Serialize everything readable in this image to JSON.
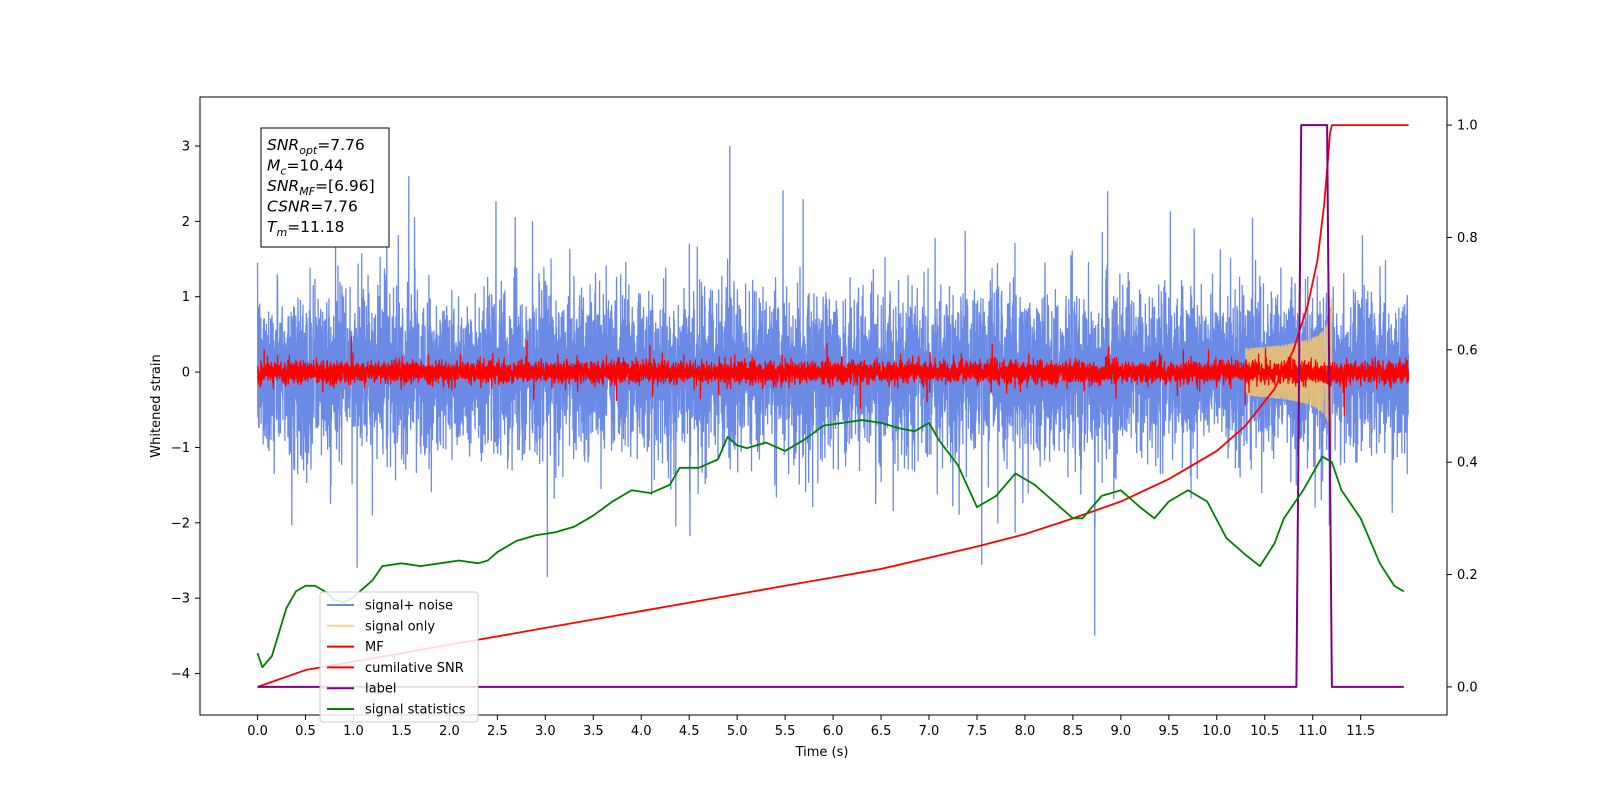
{
  "chart_data": {
    "type": "line",
    "title": "",
    "xlabel": "Time (s)",
    "ylabel": "Whitened strain",
    "xlim": [
      -0.6,
      12.4
    ],
    "ylim": [
      -4.55,
      3.65
    ],
    "y2lim": [
      -0.05,
      1.05
    ],
    "x_ticks": [
      "0.0",
      "0.5",
      "1.0",
      "1.5",
      "2.0",
      "2.5",
      "3.0",
      "3.5",
      "4.0",
      "4.5",
      "5.0",
      "5.5",
      "6.0",
      "6.5",
      "7.0",
      "7.5",
      "8.0",
      "8.5",
      "9.0",
      "9.5",
      "10.0",
      "10.5",
      "11.0",
      "11.5"
    ],
    "y_ticks": [
      "3",
      "2",
      "1",
      "0",
      "−1",
      "−2",
      "−3",
      "−4"
    ],
    "y2_ticks": [
      "0.0",
      "0.2",
      "0.4",
      "0.6",
      "0.8",
      "1.0"
    ],
    "info_box": {
      "lines": [
        {
          "base": "SNR",
          "sub": "opt",
          "rest": "=7.76"
        },
        {
          "base": "M",
          "sub": "c",
          "rest": "=10.44"
        },
        {
          "base": "SNR",
          "sub": "MF",
          "rest": "=[6.96]"
        },
        {
          "base": "CSNR",
          "sub": "",
          "rest": "=7.76"
        },
        {
          "base": "T",
          "sub": "m",
          "rest": "=11.18"
        }
      ]
    },
    "legend": {
      "position": "lower-left",
      "entries": [
        {
          "label": "signal+ noise",
          "color": "#6b8ae6"
        },
        {
          "label": "signal only",
          "color": "#f7d58a"
        },
        {
          "label": "MF",
          "color": "#ff0000"
        },
        {
          "label": "cumilative SNR",
          "color": "#ff0000"
        },
        {
          "label": "label",
          "color": "#800080"
        },
        {
          "label": "signal statistics",
          "color": "#008000"
        }
      ]
    },
    "series": [
      {
        "key": "signal_noise",
        "axis": "left",
        "color": "#6b8ae6",
        "noise": {
          "t_start": 0.0,
          "t_end": 12.0,
          "sigma": 0.95,
          "dt": 0.0015
        }
      },
      {
        "key": "mf",
        "axis": "left",
        "color": "#ff0000",
        "noise": {
          "t_start": 0.0,
          "t_end": 12.0,
          "sigma": 0.13,
          "dt": 0.0015
        }
      },
      {
        "key": "signal_only",
        "axis": "left",
        "color": "#f2c46d",
        "chirp": {
          "t_start": 10.3,
          "t_merge": 11.18,
          "t_end": 11.2,
          "peak": 0.8
        }
      },
      {
        "key": "cumulative_snr",
        "axis": "right",
        "color": "#ff0000",
        "points": [
          [
            0,
            0
          ],
          [
            0.5,
            0.03
          ],
          [
            1,
            0.045
          ],
          [
            1.5,
            0.06
          ],
          [
            2,
            0.075
          ],
          [
            2.5,
            0.09
          ],
          [
            3,
            0.105
          ],
          [
            3.5,
            0.12
          ],
          [
            4,
            0.135
          ],
          [
            4.5,
            0.15
          ],
          [
            5,
            0.165
          ],
          [
            5.5,
            0.18
          ],
          [
            6,
            0.195
          ],
          [
            6.5,
            0.21
          ],
          [
            7,
            0.23
          ],
          [
            7.5,
            0.25
          ],
          [
            8,
            0.272
          ],
          [
            8.5,
            0.3
          ],
          [
            9,
            0.33
          ],
          [
            9.5,
            0.37
          ],
          [
            10,
            0.42
          ],
          [
            10.3,
            0.465
          ],
          [
            10.6,
            0.53
          ],
          [
            10.8,
            0.6
          ],
          [
            10.95,
            0.68
          ],
          [
            11.05,
            0.76
          ],
          [
            11.12,
            0.86
          ],
          [
            11.16,
            0.94
          ],
          [
            11.18,
            0.985
          ],
          [
            11.2,
            1.0
          ],
          [
            12,
            1.0
          ]
        ]
      },
      {
        "key": "label",
        "axis": "right",
        "color": "#800080",
        "points": [
          [
            0,
            0
          ],
          [
            10.83,
            0
          ],
          [
            10.88,
            1
          ],
          [
            11.15,
            1
          ],
          [
            11.2,
            0
          ],
          [
            11.95,
            0
          ]
        ]
      },
      {
        "key": "signal_statistics",
        "axis": "right",
        "color": "#008000",
        "points": [
          [
            0,
            0.06
          ],
          [
            0.05,
            0.035
          ],
          [
            0.15,
            0.055
          ],
          [
            0.3,
            0.14
          ],
          [
            0.4,
            0.17
          ],
          [
            0.5,
            0.18
          ],
          [
            0.6,
            0.18
          ],
          [
            0.7,
            0.17
          ],
          [
            0.8,
            0.155
          ],
          [
            0.9,
            0.15
          ],
          [
            1.0,
            0.16
          ],
          [
            1.1,
            0.175
          ],
          [
            1.2,
            0.19
          ],
          [
            1.3,
            0.215
          ],
          [
            1.5,
            0.22
          ],
          [
            1.7,
            0.215
          ],
          [
            1.9,
            0.22
          ],
          [
            2.1,
            0.225
          ],
          [
            2.3,
            0.22
          ],
          [
            2.4,
            0.225
          ],
          [
            2.5,
            0.24
          ],
          [
            2.7,
            0.26
          ],
          [
            2.9,
            0.27
          ],
          [
            3.1,
            0.275
          ],
          [
            3.3,
            0.285
          ],
          [
            3.5,
            0.305
          ],
          [
            3.7,
            0.33
          ],
          [
            3.9,
            0.35
          ],
          [
            4.1,
            0.345
          ],
          [
            4.3,
            0.36
          ],
          [
            4.4,
            0.39
          ],
          [
            4.6,
            0.39
          ],
          [
            4.8,
            0.405
          ],
          [
            4.9,
            0.445
          ],
          [
            5.0,
            0.43
          ],
          [
            5.1,
            0.425
          ],
          [
            5.3,
            0.435
          ],
          [
            5.5,
            0.42
          ],
          [
            5.7,
            0.44
          ],
          [
            5.9,
            0.465
          ],
          [
            6.1,
            0.47
          ],
          [
            6.3,
            0.475
          ],
          [
            6.5,
            0.47
          ],
          [
            6.7,
            0.46
          ],
          [
            6.85,
            0.455
          ],
          [
            7.0,
            0.47
          ],
          [
            7.1,
            0.44
          ],
          [
            7.3,
            0.395
          ],
          [
            7.5,
            0.32
          ],
          [
            7.7,
            0.34
          ],
          [
            7.9,
            0.38
          ],
          [
            8.1,
            0.36
          ],
          [
            8.3,
            0.33
          ],
          [
            8.5,
            0.3
          ],
          [
            8.6,
            0.3
          ],
          [
            8.8,
            0.34
          ],
          [
            9.0,
            0.35
          ],
          [
            9.2,
            0.32
          ],
          [
            9.35,
            0.3
          ],
          [
            9.5,
            0.33
          ],
          [
            9.7,
            0.35
          ],
          [
            9.9,
            0.33
          ],
          [
            10.1,
            0.265
          ],
          [
            10.3,
            0.235
          ],
          [
            10.45,
            0.215
          ],
          [
            10.6,
            0.255
          ],
          [
            10.7,
            0.3
          ],
          [
            10.9,
            0.35
          ],
          [
            11.1,
            0.41
          ],
          [
            11.2,
            0.4
          ],
          [
            11.3,
            0.35
          ],
          [
            11.5,
            0.3
          ],
          [
            11.7,
            0.22
          ],
          [
            11.85,
            0.18
          ],
          [
            11.95,
            0.17
          ]
        ]
      }
    ]
  }
}
